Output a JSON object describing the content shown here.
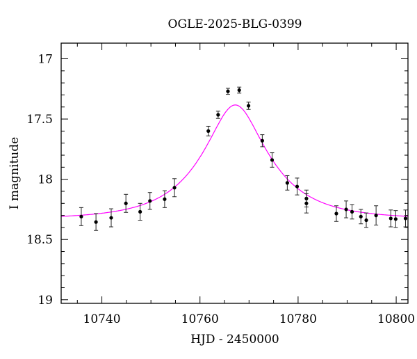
{
  "chart_data": {
    "type": "scatter",
    "title": "OGLE-2025-BLG-0399",
    "xlabel": "HJD - 2450000",
    "ylabel": "I magnitude",
    "xlim": [
      10731.7,
      10802.4
    ],
    "ylim": [
      19.03,
      16.87
    ],
    "y_inverted": true,
    "xticks": [
      10740,
      10760,
      10780,
      10800
    ],
    "yticks": [
      17,
      17.5,
      18,
      18.5,
      19
    ],
    "grid": false,
    "points": {
      "x": [
        10735.8,
        10738.8,
        10741.9,
        10744.9,
        10747.8,
        10749.8,
        10752.8,
        10754.8,
        10761.7,
        10763.7,
        10765.7,
        10768.0,
        10769.9,
        10772.7,
        10774.7,
        10777.8,
        10779.8,
        10781.7,
        10781.7,
        10787.8,
        10789.8,
        10791.0,
        10792.8,
        10793.9,
        10795.9,
        10798.9,
        10799.9,
        10801.9
      ],
      "y": [
        18.31,
        18.355,
        18.32,
        18.2,
        18.27,
        18.18,
        18.165,
        18.07,
        17.6,
        17.465,
        17.27,
        17.26,
        17.39,
        17.68,
        17.84,
        18.03,
        18.06,
        18.16,
        18.2,
        18.285,
        18.25,
        18.27,
        18.31,
        18.34,
        18.3,
        18.325,
        18.33,
        18.325
      ],
      "yerr": [
        0.075,
        0.07,
        0.075,
        0.075,
        0.07,
        0.07,
        0.07,
        0.075,
        0.04,
        0.03,
        0.025,
        0.025,
        0.03,
        0.05,
        0.06,
        0.06,
        0.07,
        0.07,
        0.08,
        0.065,
        0.07,
        0.06,
        0.06,
        0.06,
        0.08,
        0.07,
        0.07,
        0.07
      ],
      "color": "#000000"
    },
    "model": {
      "type": "line",
      "color": "#ff00ff",
      "t0": 10767.2,
      "u0": 0.385,
      "tE": 13.5,
      "baseline": 18.33,
      "blend_fraction": 0.8
    }
  }
}
